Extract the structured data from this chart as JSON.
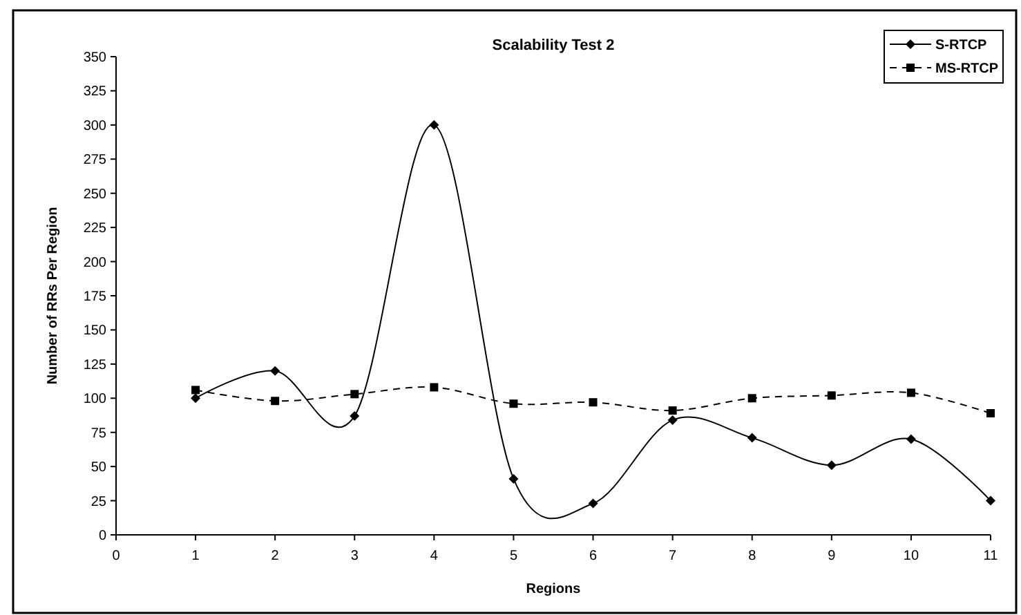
{
  "chart_data": {
    "type": "line",
    "title": "Scalability Test 2",
    "xlabel": "Regions",
    "ylabel": "Number of RRs Per Region",
    "x": [
      1,
      2,
      3,
      4,
      5,
      6,
      7,
      8,
      9,
      10,
      11
    ],
    "series": [
      {
        "name": "S-RTCP",
        "color": "#000000",
        "marker": "diamond",
        "line_style": "solid",
        "values": [
          100,
          120,
          87,
          300,
          41,
          23,
          84,
          71,
          51,
          70,
          25
        ]
      },
      {
        "name": "MS-RTCP",
        "color": "#000000",
        "marker": "square",
        "line_style": "dashed",
        "values": [
          106,
          98,
          103,
          108,
          96,
          97,
          91,
          100,
          102,
          104,
          89
        ]
      }
    ],
    "xlim": [
      0,
      11
    ],
    "xticks": [
      0,
      1,
      2,
      3,
      4,
      5,
      6,
      7,
      8,
      9,
      10,
      11
    ],
    "ylim": [
      0,
      350
    ],
    "yticks": [
      0,
      25,
      50,
      75,
      100,
      125,
      150,
      175,
      200,
      225,
      250,
      275,
      300,
      325,
      350
    ],
    "grid": false,
    "legend": "top right"
  }
}
